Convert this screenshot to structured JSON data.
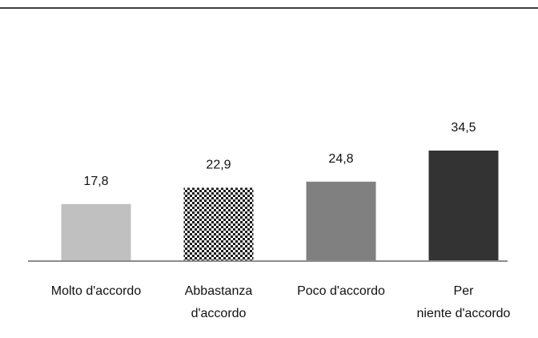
{
  "chart_data": {
    "type": "bar",
    "categories": [
      "Molto d'accordo",
      "Abbastanza d'accordo",
      "Poco d'accordo",
      "Per niente d'accordo"
    ],
    "values": [
      17.8,
      22.9,
      24.8,
      34.5
    ],
    "value_labels": [
      "17,8",
      "22,9",
      "24,8",
      "34,5"
    ],
    "ylim": [
      0,
      40
    ],
    "grid": false,
    "legend": "none",
    "colors": [
      "#c0c0c0",
      "pattern-checker",
      "#808080",
      "#333333"
    ]
  }
}
